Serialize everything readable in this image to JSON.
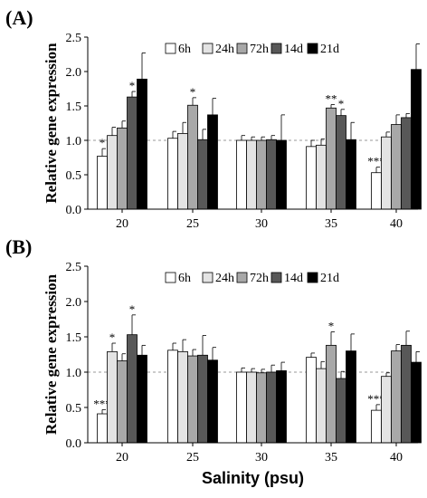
{
  "chart_data": [
    {
      "type": "bar",
      "panel_label": "(A)",
      "ylabel": "Relative gene expression",
      "xlabel": "",
      "ylim": [
        0,
        2.5
      ],
      "yticks": [
        "0.0",
        "0.5",
        "1.0",
        "1.5",
        "2.0",
        "2.5"
      ],
      "categories": [
        "20",
        "25",
        "30",
        "35",
        "40"
      ],
      "reference_line": 1.0,
      "series": [
        {
          "name": "6h",
          "color": "#ffffff",
          "values": [
            0.77,
            1.03,
            1.0,
            0.91,
            0.53
          ],
          "errors": [
            0.11,
            0.1,
            0.07,
            0.09,
            0.08
          ],
          "sig": [
            "*",
            "",
            "",
            "",
            "***"
          ]
        },
        {
          "name": "24h",
          "color": "#e3e3e3",
          "values": [
            1.07,
            1.1,
            1.0,
            0.93,
            1.05
          ],
          "errors": [
            0.12,
            0.16,
            0.05,
            0.09,
            0.07
          ],
          "sig": [
            "",
            "",
            "",
            "",
            ""
          ]
        },
        {
          "name": "72h",
          "color": "#a8a8a8",
          "values": [
            1.18,
            1.51,
            1.0,
            1.47,
            1.23
          ],
          "errors": [
            0.1,
            0.11,
            0.05,
            0.05,
            0.14
          ],
          "sig": [
            "",
            "*",
            "",
            "**",
            ""
          ]
        },
        {
          "name": "14d",
          "color": "#585858",
          "values": [
            1.63,
            1.01,
            1.01,
            1.36,
            1.33
          ],
          "errors": [
            0.08,
            0.15,
            0.06,
            0.09,
            0.06
          ],
          "sig": [
            "*",
            "",
            "",
            "*",
            ""
          ]
        },
        {
          "name": "21d",
          "color": "#000000",
          "values": [
            1.89,
            1.37,
            1.0,
            1.01,
            2.03
          ],
          "errors": [
            0.38,
            0.24,
            0.37,
            0.25,
            0.37
          ],
          "sig": [
            "",
            "",
            "",
            "",
            ""
          ]
        }
      ]
    },
    {
      "type": "bar",
      "panel_label": "(B)",
      "ylabel": "Relative gene expression",
      "xlabel": "Salinity (psu)",
      "ylim": [
        0,
        2.5
      ],
      "yticks": [
        "0.0",
        "0.5",
        "1.0",
        "1.5",
        "2.0",
        "2.5"
      ],
      "categories": [
        "20",
        "25",
        "30",
        "35",
        "40"
      ],
      "reference_line": 1.0,
      "series": [
        {
          "name": "6h",
          "color": "#ffffff",
          "values": [
            0.41,
            1.31,
            1.0,
            1.21,
            0.46
          ],
          "errors": [
            0.06,
            0.1,
            0.06,
            0.06,
            0.08
          ],
          "sig": [
            "***",
            "",
            "",
            "",
            "***"
          ]
        },
        {
          "name": "24h",
          "color": "#e3e3e3",
          "values": [
            1.29,
            1.29,
            1.0,
            1.05,
            0.94
          ],
          "errors": [
            0.12,
            0.17,
            0.05,
            0.1,
            0.05
          ],
          "sig": [
            "*",
            "",
            "",
            "",
            ""
          ]
        },
        {
          "name": "72h",
          "color": "#a8a8a8",
          "values": [
            1.16,
            1.23,
            0.99,
            1.38,
            1.3
          ],
          "errors": [
            0.1,
            0.09,
            0.05,
            0.19,
            0.09
          ],
          "sig": [
            "",
            "",
            "",
            "*",
            ""
          ]
        },
        {
          "name": "14d",
          "color": "#585858",
          "values": [
            1.53,
            1.24,
            1.0,
            0.91,
            1.38
          ],
          "errors": [
            0.28,
            0.28,
            0.1,
            0.1,
            0.2
          ],
          "sig": [
            "*",
            "",
            "",
            "",
            ""
          ]
        },
        {
          "name": "21d",
          "color": "#000000",
          "values": [
            1.24,
            1.17,
            1.02,
            1.3,
            1.14
          ],
          "errors": [
            0.14,
            0.18,
            0.12,
            0.24,
            0.15
          ],
          "sig": [
            "",
            "",
            "",
            "",
            ""
          ]
        }
      ]
    }
  ]
}
